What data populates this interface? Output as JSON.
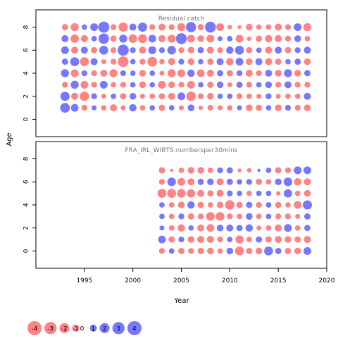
{
  "chart_data": {
    "type": "scatter",
    "subtype": "bubble-residuals",
    "xlabel": "Year",
    "ylabel": "Age",
    "xlim": [
      1990,
      2020
    ],
    "x_ticks": [
      1995,
      2000,
      2005,
      2010,
      2015,
      2020
    ],
    "colors": {
      "positive": "#4a4aff",
      "negative": "#ff5a5a"
    },
    "panels": [
      {
        "title": "Residual catch",
        "ylim": [
          -1.5,
          9.5
        ],
        "y_ticks": [
          0,
          2,
          4,
          6,
          8
        ],
        "years": [
          1993,
          2018
        ],
        "ages": [
          1,
          8
        ],
        "rows": {
          "8": [
            -0.8,
            -1.3,
            0.6,
            1.2,
            2.5,
            -0.7,
            -1.7,
            1.0,
            1.7,
            -0.7,
            -1.0,
            -0.7,
            -1.3,
            2.1,
            -0.8,
            2.4,
            -1.2,
            -0.4,
            -0.3,
            -0.9,
            -0.6,
            -0.6,
            -1.0,
            -0.7,
            1.2,
            -1.3
          ],
          "7": [
            1.0,
            -1.4,
            -1.0,
            0.6,
            2.2,
            -0.8,
            1.3,
            -1.5,
            -1.6,
            1.2,
            -1.0,
            -1.3,
            2.4,
            -1.2,
            -0.9,
            -1.2,
            0.5,
            0.6,
            -1.2,
            -0.4,
            -0.8,
            -1.1,
            -1.0,
            -0.7,
            0.9,
            -0.6
          ],
          "6": [
            1.2,
            -1.0,
            1.0,
            -0.8,
            1.6,
            -0.7,
            2.5,
            0.7,
            -1.0,
            1.3,
            0.7,
            1.5,
            -0.7,
            -0.9,
            0.8,
            -1.0,
            -0.7,
            1.1,
            1.6,
            -0.8,
            0.6,
            -1.0,
            1.0,
            -0.8,
            0.7,
            1.0
          ],
          "5": [
            0.8,
            1.6,
            -1.6,
            1.0,
            -0.5,
            -0.7,
            -2.3,
            0.6,
            -0.7,
            -1.9,
            -0.6,
            -1.0,
            0.7,
            -0.9,
            0.6,
            -0.8,
            1.0,
            -1.1,
            1.2,
            -0.9,
            1.0,
            -1.0,
            -0.8,
            0.6,
            0.8,
            -0.9
          ],
          "4": [
            1.3,
            -1.2,
            0.7,
            -0.7,
            -1.0,
            -1.3,
            0.7,
            0.6,
            -0.9,
            0.6,
            -0.5,
            -1.3,
            -1.2,
            1.1,
            -1.2,
            -1.0,
            0.8,
            -0.8,
            0.7,
            -1.0,
            -0.7,
            1.0,
            -0.9,
            1.3,
            -0.9,
            0.8
          ],
          "3": [
            -0.7,
            1.3,
            -1.2,
            -0.7,
            1.2,
            -0.6,
            -0.7,
            0.6,
            -0.9,
            0.6,
            -1.2,
            -0.9,
            -0.7,
            -1.2,
            0.6,
            -0.8,
            0.9,
            -0.5,
            0.8,
            -0.7,
            0.6,
            0.9,
            -0.7,
            1.0,
            -0.7,
            -0.7
          ],
          "2": [
            1.7,
            -1.0,
            -1.8,
            0.7,
            -0.5,
            0.6,
            -0.8,
            0.9,
            -0.5,
            -0.6,
            -0.8,
            -1.0,
            1.2,
            -1.8,
            -0.7,
            -0.9,
            0.6,
            0.6,
            -0.7,
            -0.6,
            -0.5,
            0.7,
            -0.5,
            -0.6,
            -0.6,
            1.0
          ],
          "1": [
            1.9,
            1.2,
            -0.7,
            0.5,
            -0.6,
            -1.0,
            -0.5,
            1.1,
            -0.6,
            0.6,
            -0.8,
            0.6,
            -0.5,
            0.9,
            -0.4,
            -0.7,
            -0.5,
            -0.6,
            0.5,
            -0.9,
            -0.8,
            0.6,
            -0.9,
            0.7,
            -0.7,
            -0.9
          ]
        }
      },
      {
        "title": "FRA_IRL_WIBTS:numbersper30mins",
        "ylim": [
          -1.5,
          9.5
        ],
        "y_ticks": [
          0,
          2,
          4,
          6,
          8
        ],
        "years": [
          2003,
          2018
        ],
        "ages": [
          0,
          7
        ],
        "rows": {
          "7": [
            -0.8,
            -0.2,
            -0.6,
            -0.9,
            -0.9,
            -0.6,
            0.7,
            0.8,
            -0.3,
            -0.4,
            0.2,
            0.6,
            -0.8,
            -0.7,
            1.2,
            1.2
          ],
          "6": [
            -0.7,
            1.5,
            -1.2,
            -1.0,
            0.8,
            0.9,
            -1.0,
            0.8,
            0.6,
            0.7,
            -0.8,
            -0.6,
            0.9,
            1.5,
            -1.1,
            -1.0
          ],
          "5": [
            -1.6,
            -1.6,
            -1.5,
            -1.4,
            -1.0,
            -0.8,
            -1.0,
            0.7,
            0.6,
            -0.6,
            0.6,
            0.6,
            -0.4,
            1.4,
            -0.6,
            -0.9
          ],
          "4": [
            0.6,
            -0.6,
            -0.9,
            1.1,
            -0.8,
            -0.6,
            -0.9,
            -1.8,
            -0.8,
            0.8,
            -0.7,
            0.6,
            -0.8,
            -0.6,
            -1.2,
            1.7
          ],
          "3": [
            0.6,
            -0.6,
            0.7,
            -0.8,
            -0.7,
            -1.5,
            -1.5,
            -0.7,
            -0.6,
            0.9,
            -0.6,
            0.6,
            -0.7,
            -0.7,
            -0.5,
            0.8
          ],
          "2": [
            0.5,
            -0.6,
            -1.1,
            0.6,
            -1.0,
            -1.2,
            0.9,
            1.0,
            0.8,
            1.1,
            -0.5,
            -0.6,
            -1.0,
            1.2,
            -0.6,
            0.8
          ],
          "1": [
            1.2,
            -0.8,
            0.7,
            -0.9,
            -1.0,
            -1.0,
            -0.7,
            0.6,
            -1.3,
            -0.6,
            0.8,
            -0.8,
            -1.0,
            -0.9,
            -0.8,
            -1.0
          ],
          "0": [
            -0.7,
            0.6,
            -0.8,
            -0.7,
            -0.8,
            -0.9,
            -0.6,
            0.9,
            -1.6,
            -0.8,
            -0.9,
            1.6,
            0.8,
            -0.8,
            -0.9,
            1.2
          ]
        }
      }
    ],
    "legend": {
      "placement": "bottom-left",
      "values": [
        -4,
        -3,
        -2,
        -1,
        0,
        1,
        2,
        3,
        4
      ],
      "labels": [
        "-4",
        "-3",
        "-2",
        "-1",
        "0",
        "1",
        "2",
        "3",
        "4"
      ]
    }
  }
}
